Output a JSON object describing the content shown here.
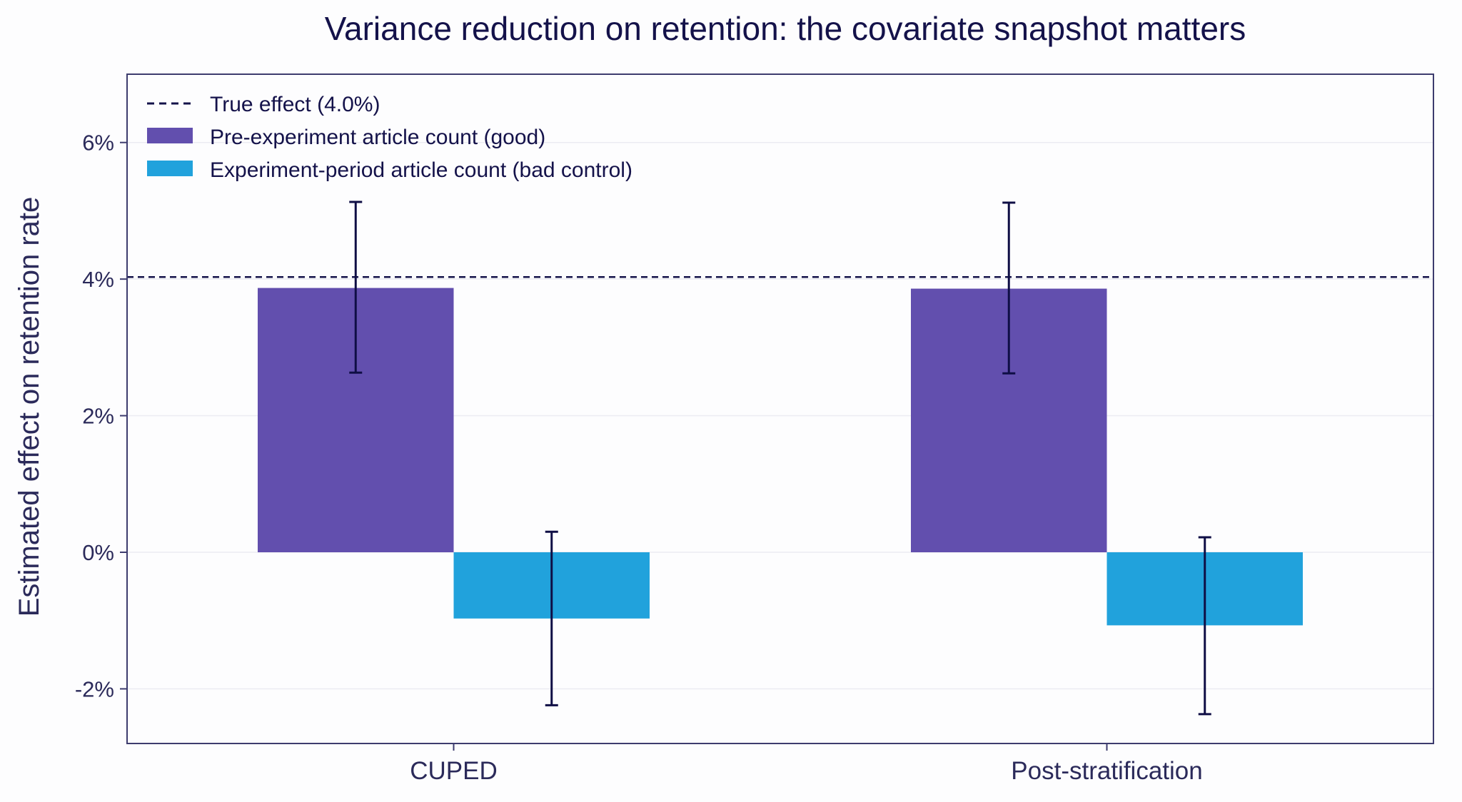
{
  "chart_data": {
    "type": "bar",
    "title": "Variance reduction on retention: the covariate snapshot matters",
    "xlabel": "",
    "ylabel": "Estimated effect on retention rate",
    "categories": [
      "CUPED",
      "Post-stratification"
    ],
    "series": [
      {
        "name": "Pre-experiment article count (good)",
        "values": [
          3.87,
          3.86
        ],
        "error_low": [
          2.63,
          2.62
        ],
        "error_high": [
          5.13,
          5.12
        ],
        "color": "#624fae"
      },
      {
        "name": "Experiment-period article count (bad control)",
        "values": [
          -0.97,
          -1.07
        ],
        "error_low": [
          -2.24,
          -2.37
        ],
        "error_high": [
          0.3,
          0.22
        ],
        "color": "#21a2dc"
      }
    ],
    "reference_line": {
      "label": "True effect (4.0%)",
      "value": 4.03,
      "style": "dashed",
      "color": "#14124a"
    },
    "ylim": [
      -2.8,
      7.0
    ],
    "yticks": [
      -2,
      0,
      2,
      4,
      6
    ],
    "ytick_labels": [
      "-2%",
      "0%",
      "2%",
      "4%",
      "6%"
    ],
    "grid": true,
    "legend_position": "top-left"
  },
  "colors": {
    "axis": "#3d3c6e",
    "text": "#14124a",
    "grid": "#ececf2",
    "errorbar": "#0f0e45"
  }
}
